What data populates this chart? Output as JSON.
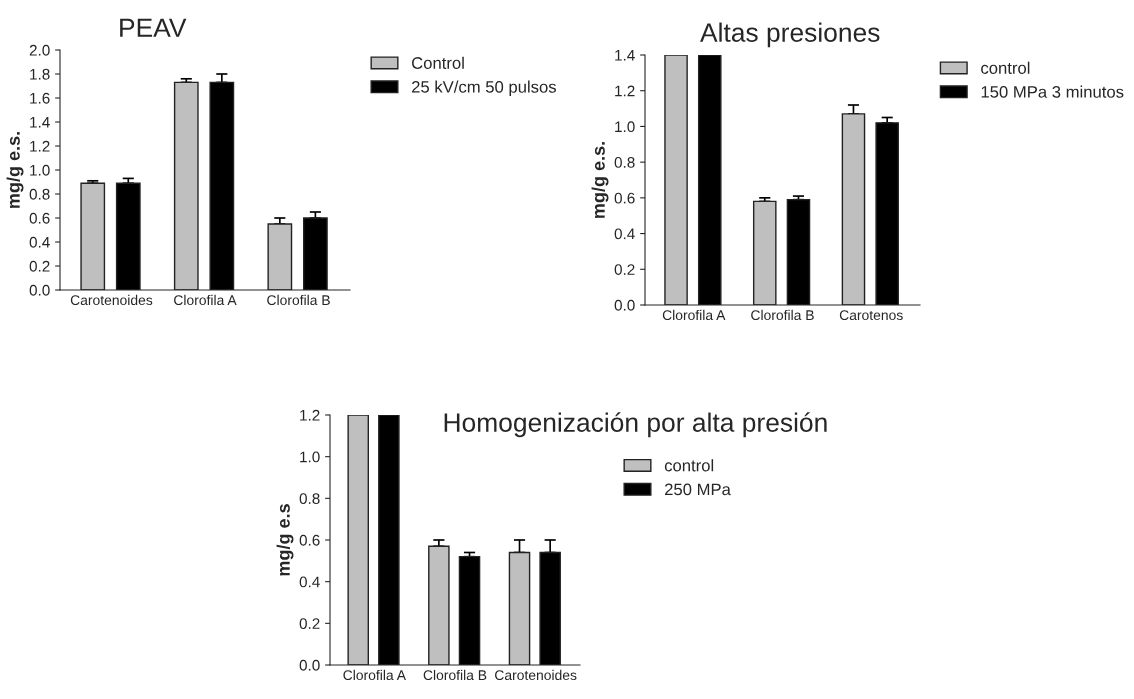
{
  "chart_data": [
    {
      "type": "bar",
      "title": "PEAV",
      "ylabel": "mg/g e.s.",
      "categories": [
        "Carotenoides",
        "Clorofila A",
        "Clorofila B"
      ],
      "ylim": [
        0,
        2.0
      ],
      "yticks": [
        {
          "value": 0,
          "label": "0.0"
        },
        0.2,
        0.4,
        0.6,
        0.8,
        {
          "value": 1,
          "label": "1.0"
        },
        1.2,
        1.4,
        1.6,
        1.8,
        {
          "value": 2,
          "label": "2.0"
        }
      ],
      "legend": "top right",
      "grid": false,
      "series": [
        {
          "name": "Control",
          "color": "#bfbfbf",
          "values": [
            0.89,
            1.73,
            0.55
          ],
          "errors": [
            [
              0.89,
              0.91
            ],
            [
              1.73,
              1.76
            ],
            [
              0.55,
              0.6
            ]
          ]
        },
        {
          "name": "25 kV/cm 50 pulsos",
          "color": "#000000",
          "values": [
            0.89,
            1.73,
            0.6
          ],
          "errors": [
            [
              0.89,
              0.93
            ],
            [
              1.73,
              1.8
            ],
            [
              0.6,
              0.65
            ]
          ]
        }
      ]
    },
    {
      "type": "bar",
      "title": "Altas presiones",
      "ylabel": "mg/g e.s.",
      "categories": [
        "Clorofila A",
        "Clorofila B",
        "Carotenos"
      ],
      "ylim": [
        0,
        1.4
      ],
      "yticks": [
        {
          "value": 0,
          "label": "0.0"
        },
        0.2,
        0.4,
        0.6,
        0.8,
        {
          "value": 1,
          "label": "1.0"
        },
        1.2,
        1.4
      ],
      "legend": "top right",
      "grid": false,
      "series": [
        {
          "name": "control",
          "color": "#bfbfbf",
          "values": [
            1.4,
            0.58,
            1.07
          ],
          "errors": [
            null,
            [
              0.58,
              0.6
            ],
            [
              1.07,
              1.12
            ]
          ]
        },
        {
          "name": "150 MPa 3 minutos",
          "color": "#000000",
          "values": [
            1.4,
            0.59,
            1.02
          ],
          "errors": [
            null,
            [
              0.59,
              0.61
            ],
            [
              1.02,
              1.05
            ]
          ]
        }
      ]
    },
    {
      "type": "bar",
      "title": "Homogenización por alta presión",
      "ylabel": "mg/g e.s",
      "categories": [
        "Clorofila A",
        "Clorofila B",
        "Carotenoides"
      ],
      "ylim": [
        0,
        1.2
      ],
      "yticks": [
        {
          "value": 0,
          "label": "0.0"
        },
        0.2,
        0.4,
        0.6,
        0.8,
        {
          "value": 1,
          "label": "1.0"
        },
        1.2
      ],
      "legend": "top right",
      "grid": false,
      "series": [
        {
          "name": "control",
          "color": "#bfbfbf",
          "values": [
            1.2,
            0.57,
            0.54
          ],
          "errors": [
            null,
            [
              0.57,
              0.6
            ],
            [
              0.54,
              0.6
            ]
          ]
        },
        {
          "name": "250 MPa",
          "color": "#000000",
          "values": [
            1.2,
            0.52,
            0.54
          ],
          "errors": [
            null,
            [
              0.52,
              0.54
            ],
            [
              0.54,
              0.6
            ]
          ]
        }
      ]
    }
  ]
}
